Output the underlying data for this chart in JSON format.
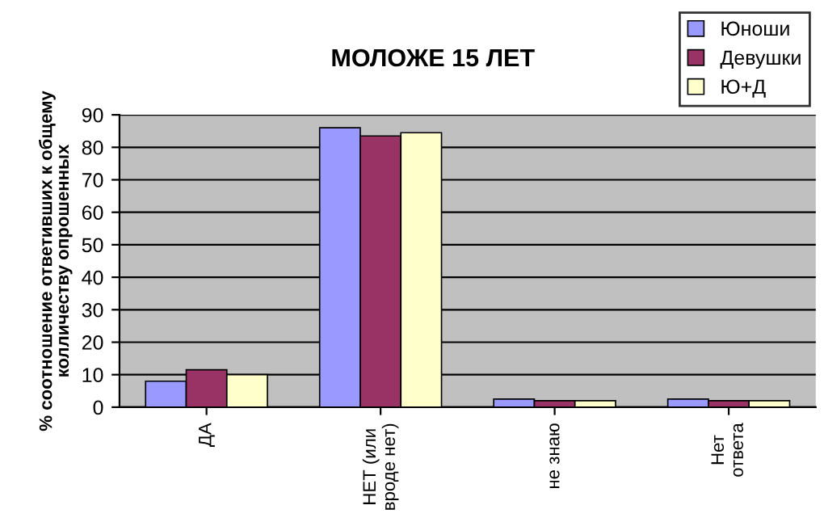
{
  "chart_data": {
    "type": "bar",
    "title": "МОЛОЖЕ 15 ЛЕТ",
    "ylabel": "% соотношение ответивших к общему\nколличеству опрошенных",
    "categories": [
      "ДА",
      "НЕТ (или\nвроде нет)",
      "не знаю",
      "Нет\nответа"
    ],
    "series": [
      {
        "name": "Юноши",
        "color": "#9999ff",
        "values": [
          8,
          86,
          2.5,
          2.5
        ]
      },
      {
        "name": "Девушки",
        "color": "#993366",
        "values": [
          11.5,
          83.5,
          2,
          2
        ]
      },
      {
        "name": "Ю+Д",
        "color": "#ffffcc",
        "values": [
          10,
          84.5,
          2,
          2
        ]
      }
    ],
    "ylim": [
      0,
      90
    ],
    "yticks": [
      0,
      10,
      20,
      30,
      40,
      50,
      60,
      70,
      80,
      90
    ],
    "grid": "y",
    "legend": "top right"
  }
}
